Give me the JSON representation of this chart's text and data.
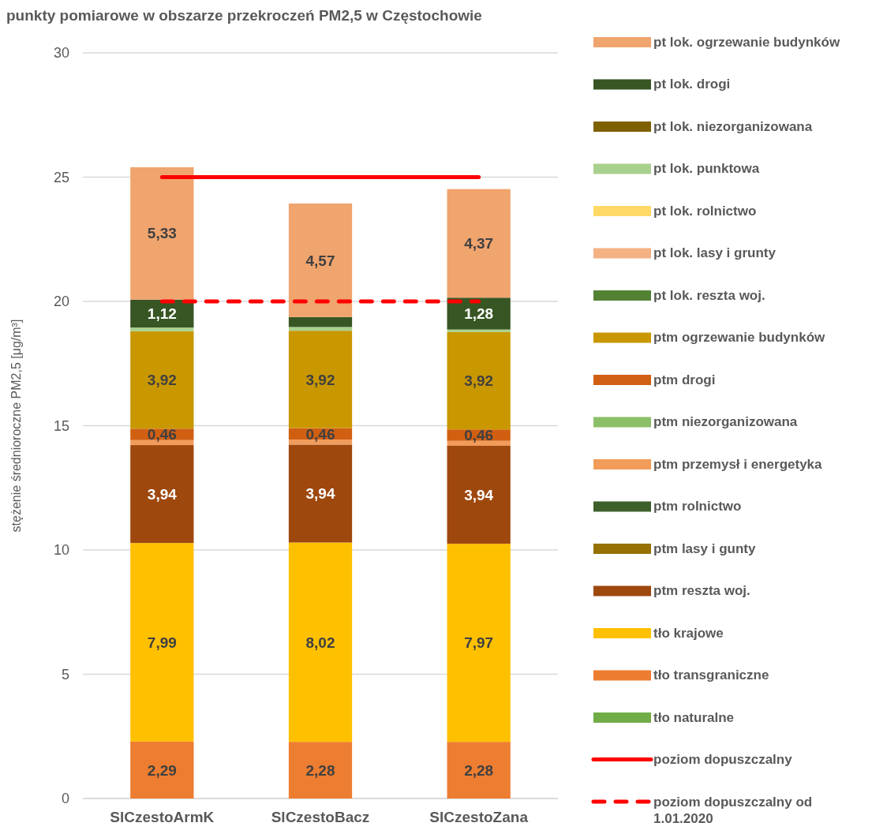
{
  "chart_data": {
    "type": "bar",
    "stacked": true,
    "title": "punkty pomiarowe w obszarze przekroczeń PM2,5 w Częstochowie",
    "ylabel": "stężenie średnioroczne PM2,5 [μg/m³]",
    "categories": [
      "SlCzestoArmK",
      "SlCzestoBacz",
      "SlCzestoZana"
    ],
    "ylim": [
      0,
      30
    ],
    "yticks": [
      0,
      5,
      10,
      15,
      20,
      25,
      30
    ],
    "grid": "y",
    "legend": "right",
    "series": [
      {
        "name": "tło naturalne",
        "color": "#70ad47",
        "values": [
          0,
          0,
          0
        ],
        "value_labels": [
          null,
          null,
          null
        ]
      },
      {
        "name": "tło transgraniczne",
        "color": "#ed7d31",
        "values": [
          2.29,
          2.28,
          2.28
        ],
        "value_labels": [
          "2,29",
          "2,28",
          "2,28"
        ]
      },
      {
        "name": "tło krajowe",
        "color": "#ffc000",
        "values": [
          7.99,
          8.02,
          7.97
        ],
        "value_labels": [
          "7,99",
          "8,02",
          "7,97"
        ]
      },
      {
        "name": "ptm reszta woj.",
        "color": "#9e480e",
        "values": [
          3.94,
          3.94,
          3.94
        ],
        "value_labels": [
          "3,94",
          "3,94",
          "3,94"
        ]
      },
      {
        "name": "ptm lasy i gunty",
        "color": "#967000",
        "values": [
          0,
          0,
          0
        ],
        "value_labels": [
          null,
          null,
          null
        ]
      },
      {
        "name": "ptm rolnictwo",
        "color": "#3d5f2a",
        "values": [
          0,
          0,
          0
        ],
        "value_labels": [
          null,
          null,
          null
        ]
      },
      {
        "name": "ptm przemysł i energetyka",
        "color": "#f19c5b",
        "values": [
          0.2,
          0.2,
          0.2
        ],
        "value_labels": [
          null,
          null,
          null
        ]
      },
      {
        "name": "ptm niezorganizowana",
        "color": "#8cc068",
        "values": [
          0,
          0,
          0
        ],
        "value_labels": [
          null,
          null,
          null
        ]
      },
      {
        "name": "ptm drogi",
        "color": "#d15f12",
        "values": [
          0.46,
          0.46,
          0.46
        ],
        "value_labels": [
          "0,46",
          "0,46",
          "0,46"
        ]
      },
      {
        "name": "ptm ogrzewanie budynków",
        "color": "#c99700",
        "values": [
          3.92,
          3.92,
          3.92
        ],
        "value_labels": [
          "3,92",
          "3,92",
          "3,92"
        ]
      },
      {
        "name": "pt lok. reszta woj.",
        "color": "#548235",
        "values": [
          0,
          0,
          0
        ],
        "value_labels": [
          null,
          null,
          null
        ]
      },
      {
        "name": "pt lok. lasy i grunty",
        "color": "#f4b183",
        "values": [
          0,
          0,
          0
        ],
        "value_labels": [
          null,
          null,
          null
        ]
      },
      {
        "name": "pt lok. rolnictwo",
        "color": "#ffd966",
        "values": [
          0,
          0,
          0
        ],
        "value_labels": [
          null,
          null,
          null
        ]
      },
      {
        "name": "pt lok. punktowa",
        "color": "#a9d18e",
        "values": [
          0.15,
          0.15,
          0.1
        ],
        "value_labels": [
          null,
          null,
          null
        ]
      },
      {
        "name": "pt lok. niezorganizowana",
        "color": "#7f6000",
        "values": [
          0,
          0,
          0
        ],
        "value_labels": [
          null,
          null,
          null
        ]
      },
      {
        "name": "pt lok. drogi",
        "color": "#375623",
        "values": [
          1.12,
          0.4,
          1.28
        ],
        "value_labels": [
          "1,12",
          null,
          "1,28"
        ]
      },
      {
        "name": "pt lok. ogrzewanie budynków",
        "color": "#f0a46e",
        "values": [
          5.33,
          4.57,
          4.37
        ],
        "value_labels": [
          "5,33",
          "4,57",
          "4,37"
        ]
      }
    ],
    "ref_lines": [
      {
        "axis": "y",
        "value": 25,
        "label": "poziom dopuszczalny",
        "color": "#ff0000",
        "line_style": "solid"
      },
      {
        "axis": "y",
        "value": 20,
        "label": "poziom dopuszczalny od 1.01.2020",
        "color": "#ff0000",
        "line_style": "dashed"
      }
    ]
  }
}
